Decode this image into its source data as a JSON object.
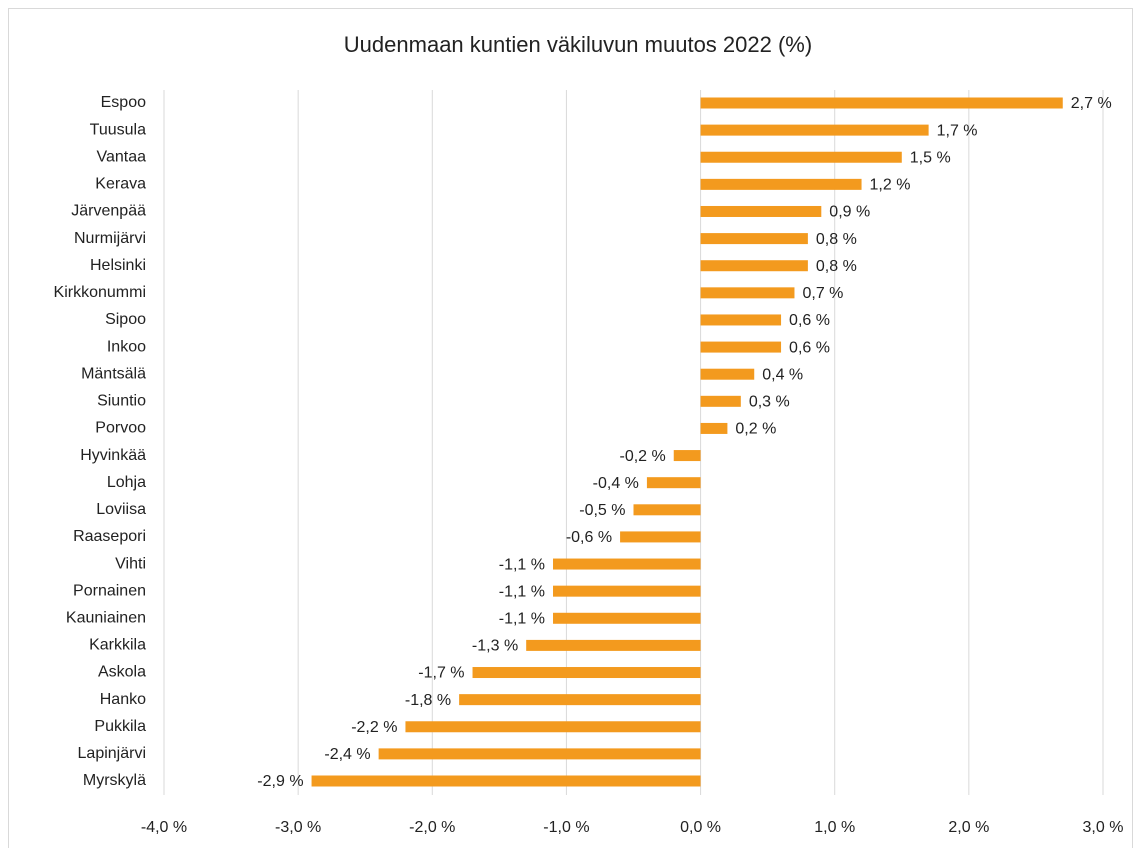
{
  "chart_data": {
    "type": "bar",
    "orientation": "horizontal",
    "title": "Uudenmaan kuntien väkiluvun muutos 2022 (%)",
    "categories": [
      "Espoo",
      "Tuusula",
      "Vantaa",
      "Kerava",
      "Järvenpää",
      "Nurmijärvi",
      "Helsinki",
      "Kirkkonummi",
      "Sipoo",
      "Inkoo",
      "Mäntsälä",
      "Siuntio",
      "Porvoo",
      "Hyvinkää",
      "Lohja",
      "Loviisa",
      "Raasepori",
      "Vihti",
      "Pornainen",
      "Kauniainen",
      "Karkkila",
      "Askola",
      "Hanko",
      "Pukkila",
      "Lapinjärvi",
      "Myrskylä"
    ],
    "values": [
      2.7,
      1.7,
      1.5,
      1.2,
      0.9,
      0.8,
      0.8,
      0.7,
      0.6,
      0.6,
      0.4,
      0.3,
      0.2,
      -0.2,
      -0.4,
      -0.5,
      -0.6,
      -1.1,
      -1.1,
      -1.1,
      -1.3,
      -1.7,
      -1.8,
      -2.2,
      -2.4,
      -2.9
    ],
    "value_labels": [
      "2,7 %",
      "1,7 %",
      "1,5 %",
      "1,2 %",
      "0,9 %",
      "0,8 %",
      "0,8 %",
      "0,7 %",
      "0,6 %",
      "0,6 %",
      "0,4 %",
      "0,3 %",
      "0,2 %",
      "-0,2 %",
      "-0,4 %",
      "-0,5 %",
      "-0,6 %",
      "-1,1 %",
      "-1,1 %",
      "-1,1 %",
      "-1,3 %",
      "-1,7 %",
      "-1,8 %",
      "-2,2 %",
      "-2,4 %",
      "-2,9 %"
    ],
    "color": "#f39a1e",
    "xlim": [
      -4,
      3
    ],
    "xticks": [
      {
        "value": -4,
        "label": "-4,0 %"
      },
      {
        "value": -3,
        "label": "-3,0 %"
      },
      {
        "value": -2,
        "label": "-2,0 %"
      },
      {
        "value": -1,
        "label": "-1,0 %"
      },
      {
        "value": 0,
        "label": "0,0 %"
      },
      {
        "value": 1,
        "label": "1,0 %"
      },
      {
        "value": 2,
        "label": "2,0 %"
      },
      {
        "value": 3,
        "label": "3,0 %"
      }
    ],
    "grid": true
  }
}
